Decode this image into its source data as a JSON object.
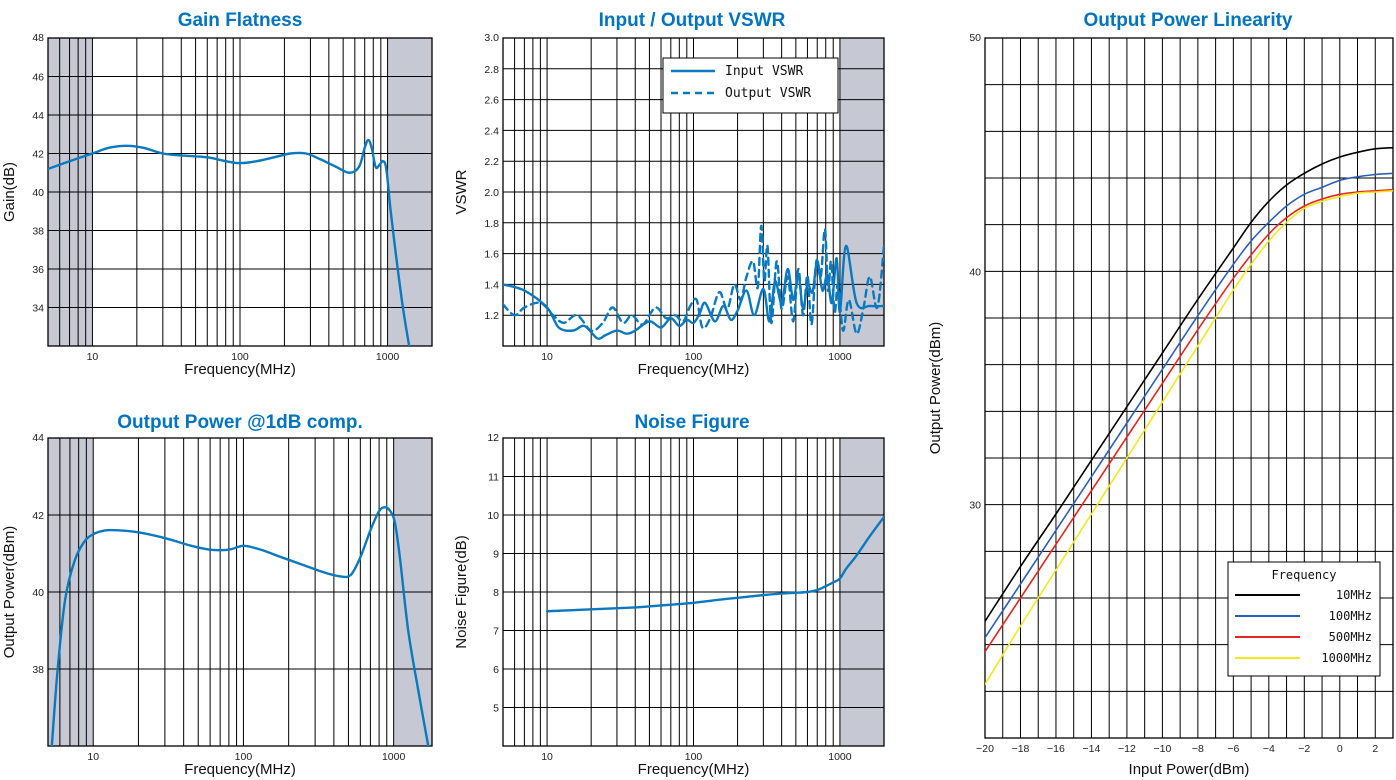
{
  "colors": {
    "title": "#0074c2",
    "curve": "#0a79bf",
    "shade": "#c6c9d4",
    "grid": "#000000"
  },
  "chart_data": [
    {
      "id": "gain",
      "type": "line",
      "title": "Gain Flatness",
      "xlabel": "Frequency(MHz)",
      "ylabel": "Gain(dB)",
      "xscale": "log",
      "xlim": [
        5,
        2000
      ],
      "ylim": [
        32,
        48
      ],
      "xticks": [
        10,
        100,
        1000
      ],
      "yticks": [
        34,
        36,
        38,
        40,
        42,
        44,
        46,
        48
      ],
      "ytick_labels": [
        "34",
        "36",
        "38",
        "40",
        "42",
        "44",
        "46",
        "48"
      ],
      "shaded_regions": [
        [
          5,
          10
        ],
        [
          1000,
          2000
        ]
      ],
      "series": [
        {
          "x": [
            5,
            7,
            10,
            13,
            17,
            22,
            30,
            40,
            60,
            80,
            100,
            130,
            170,
            220,
            280,
            350,
            450,
            550,
            640,
            700,
            740,
            780,
            830,
            880,
            930,
            980,
            1050,
            1150,
            1270,
            1400
          ],
          "y": [
            41.2,
            41.6,
            42.0,
            42.3,
            42.4,
            42.3,
            42.0,
            41.9,
            41.8,
            41.6,
            41.5,
            41.6,
            41.8,
            42.0,
            42.0,
            41.7,
            41.3,
            41.0,
            41.3,
            42.3,
            42.7,
            42.3,
            41.3,
            41.4,
            41.6,
            41.2,
            39.0,
            36.5,
            34.0,
            32.0
          ]
        }
      ]
    },
    {
      "id": "vswr",
      "type": "line",
      "title": "Input / Output VSWR",
      "xlabel": "Frequency(MHz)",
      "ylabel": "VSWR",
      "xscale": "log",
      "xlim": [
        5,
        2000
      ],
      "ylim": [
        1.0,
        3.0
      ],
      "xticks": [
        10,
        100,
        1000
      ],
      "yticks": [
        1.2,
        1.4,
        1.6,
        1.8,
        2.0,
        2.2,
        2.4,
        2.6,
        2.8,
        3.0
      ],
      "ytick_labels": [
        "1.2",
        "1.4",
        "1.6",
        "1.8",
        "2.0",
        "2.2",
        "2.4",
        "2.6",
        "2.8",
        "3.0"
      ],
      "shaded_regions": [
        [
          1000,
          2000
        ]
      ],
      "legend": "top-right",
      "series": [
        {
          "name": "Input VSWR",
          "dash": "solid",
          "x": [
            5,
            7,
            10,
            12,
            15,
            18,
            22,
            25,
            30,
            35,
            40,
            50,
            60,
            70,
            80,
            90,
            100,
            110,
            120,
            140,
            160,
            180,
            200,
            230,
            260,
            300,
            330,
            360,
            400,
            440,
            480,
            520,
            560,
            600,
            650,
            700,
            760,
            820,
            880,
            950,
            1000,
            1100,
            1300,
            1600,
            2000
          ],
          "y": [
            1.4,
            1.36,
            1.25,
            1.12,
            1.1,
            1.13,
            1.05,
            1.07,
            1.1,
            1.08,
            1.1,
            1.16,
            1.12,
            1.18,
            1.13,
            1.17,
            1.15,
            1.21,
            1.28,
            1.16,
            1.26,
            1.17,
            1.23,
            1.36,
            1.2,
            1.37,
            1.16,
            1.42,
            1.28,
            1.5,
            1.3,
            1.46,
            1.24,
            1.4,
            1.35,
            1.55,
            1.36,
            1.46,
            1.28,
            1.57,
            1.22,
            1.65,
            1.28,
            1.26,
            1.26
          ]
        },
        {
          "name": "Output VSWR",
          "dash": "dashed",
          "x": [
            5,
            6,
            7,
            9,
            11,
            13,
            16,
            20,
            24,
            28,
            33,
            38,
            45,
            55,
            65,
            75,
            85,
            95,
            105,
            115,
            130,
            150,
            170,
            190,
            210,
            230,
            255,
            275,
            290,
            305,
            320,
            340,
            370,
            400,
            440,
            480,
            520,
            560,
            600,
            640,
            690,
            740,
            790,
            830,
            870,
            920,
            970,
            1050,
            1150,
            1300,
            1450,
            1600,
            1800,
            2000
          ],
          "y": [
            1.27,
            1.2,
            1.25,
            1.28,
            1.2,
            1.15,
            1.2,
            1.1,
            1.15,
            1.25,
            1.15,
            1.2,
            1.14,
            1.25,
            1.18,
            1.2,
            1.16,
            1.26,
            1.3,
            1.12,
            1.18,
            1.35,
            1.24,
            1.4,
            1.3,
            1.45,
            1.55,
            1.38,
            1.78,
            1.42,
            1.65,
            1.15,
            1.55,
            1.24,
            1.45,
            1.16,
            1.5,
            1.2,
            1.46,
            1.14,
            1.55,
            1.45,
            1.76,
            1.36,
            1.55,
            1.22,
            1.4,
            1.1,
            1.3,
            1.08,
            1.25,
            1.45,
            1.25,
            1.65
          ]
        }
      ]
    },
    {
      "id": "p1db",
      "type": "line",
      "title": "Output Power @1dB comp.",
      "xlabel": "Frequency(MHz)",
      "ylabel": "Output Power(dBm)",
      "xscale": "log",
      "xlim": [
        5,
        1800
      ],
      "ylim": [
        36,
        44
      ],
      "xticks": [
        10,
        100,
        1000
      ],
      "yticks": [
        38,
        40,
        42,
        44
      ],
      "ytick_labels": [
        "38",
        "40",
        "42",
        "44"
      ],
      "shaded_regions": [
        [
          5,
          10
        ],
        [
          1000,
          1800
        ]
      ],
      "series": [
        {
          "x": [
            5.3,
            5.8,
            6.5,
            7.5,
            8.7,
            10,
            12,
            15,
            20,
            30,
            45,
            60,
            80,
            100,
            130,
            180,
            250,
            350,
            450,
            520,
            600,
            700,
            800,
            880,
            950,
            1020,
            1100,
            1250,
            1450,
            1700
          ],
          "y": [
            36.0,
            38.0,
            39.8,
            40.8,
            41.3,
            41.5,
            41.6,
            41.6,
            41.55,
            41.4,
            41.2,
            41.1,
            41.1,
            41.2,
            41.1,
            40.9,
            40.7,
            40.5,
            40.4,
            40.45,
            40.9,
            41.6,
            42.1,
            42.2,
            42.1,
            41.8,
            40.9,
            39.0,
            37.5,
            36.0
          ]
        }
      ]
    },
    {
      "id": "nf",
      "type": "line",
      "title": "Noise Figure",
      "xlabel": "Frequency(MHz)",
      "ylabel": "Noise Figure(dB)",
      "xscale": "log",
      "xlim": [
        5,
        2000
      ],
      "ylim": [
        4,
        12
      ],
      "xticks": [
        10,
        100,
        1000
      ],
      "yticks": [
        5,
        6,
        7,
        8,
        9,
        10,
        11,
        12
      ],
      "ytick_labels": [
        "5",
        "6",
        "7",
        "8",
        "9",
        "10",
        "11",
        "12"
      ],
      "shaded_regions": [
        [
          1000,
          2000
        ]
      ],
      "series": [
        {
          "x": [
            10,
            20,
            40,
            60,
            100,
            150,
            200,
            300,
            400,
            500,
            600,
            700,
            800,
            900,
            1000,
            1100,
            1300,
            1600,
            2000
          ],
          "y": [
            7.5,
            7.55,
            7.6,
            7.65,
            7.72,
            7.8,
            7.85,
            7.92,
            7.96,
            7.98,
            8.0,
            8.05,
            8.15,
            8.25,
            8.35,
            8.6,
            8.95,
            9.45,
            9.95
          ]
        }
      ]
    },
    {
      "id": "lin",
      "type": "line",
      "title": "Output Power Linearity",
      "xlabel": "Input Power(dBm)",
      "ylabel": "Output Power(dBm)",
      "xscale": "linear",
      "xlim": [
        -20,
        3
      ],
      "ylim": [
        20,
        50
      ],
      "xticks": [
        -20,
        -18,
        -16,
        -14,
        -12,
        -10,
        -8,
        -6,
        -4,
        -2,
        0,
        2
      ],
      "xtick_labels": [
        "−20",
        "−18",
        "−16",
        "−14",
        "−12",
        "−10",
        "−8",
        "−6",
        "−4",
        "−2",
        "0",
        "2"
      ],
      "yticks": [
        30,
        40,
        50
      ],
      "ytick_labels": [
        "30",
        "40",
        "50"
      ],
      "legend_title": "Frequency",
      "legend": "bottom-right",
      "series": [
        {
          "name": "10MHz",
          "color": "#000000",
          "x": [
            -20,
            -18,
            -16,
            -14,
            -12,
            -10,
            -8,
            -6,
            -5,
            -4,
            -3,
            -2,
            -1,
            0,
            1,
            2,
            3
          ],
          "y": [
            25.0,
            27.35,
            29.6,
            31.9,
            34.2,
            36.5,
            38.8,
            41.0,
            42.1,
            43.0,
            43.7,
            44.2,
            44.6,
            44.9,
            45.1,
            45.25,
            45.3
          ]
        },
        {
          "name": "100MHz",
          "color": "#2e5fb8",
          "x": [
            -20,
            -18,
            -16,
            -14,
            -12,
            -10,
            -8,
            -6,
            -5,
            -4,
            -3,
            -2,
            -1,
            0,
            1,
            2,
            3
          ],
          "y": [
            24.3,
            26.6,
            28.9,
            31.2,
            33.5,
            35.8,
            38.1,
            40.3,
            41.3,
            42.1,
            42.8,
            43.3,
            43.6,
            43.9,
            44.05,
            44.15,
            44.2
          ]
        },
        {
          "name": "500MHz",
          "color": "#e52520",
          "x": [
            -20,
            -18,
            -16,
            -14,
            -12,
            -10,
            -8,
            -6,
            -5,
            -4,
            -3,
            -2,
            -1,
            0,
            1,
            2,
            3
          ],
          "y": [
            23.7,
            26.0,
            28.3,
            30.6,
            32.9,
            35.2,
            37.5,
            39.7,
            40.7,
            41.6,
            42.3,
            42.8,
            43.1,
            43.3,
            43.4,
            43.45,
            43.5
          ]
        },
        {
          "name": "1000MHz",
          "color": "#f2e81c",
          "x": [
            -20,
            -18,
            -16,
            -14,
            -12,
            -10,
            -8,
            -6,
            -5,
            -4,
            -3,
            -2,
            -1,
            0,
            1,
            2,
            3
          ],
          "y": [
            22.3,
            24.8,
            27.2,
            29.6,
            32.0,
            34.4,
            36.8,
            39.2,
            40.3,
            41.3,
            42.1,
            42.7,
            43.0,
            43.2,
            43.35,
            43.4,
            43.45
          ]
        }
      ]
    }
  ]
}
